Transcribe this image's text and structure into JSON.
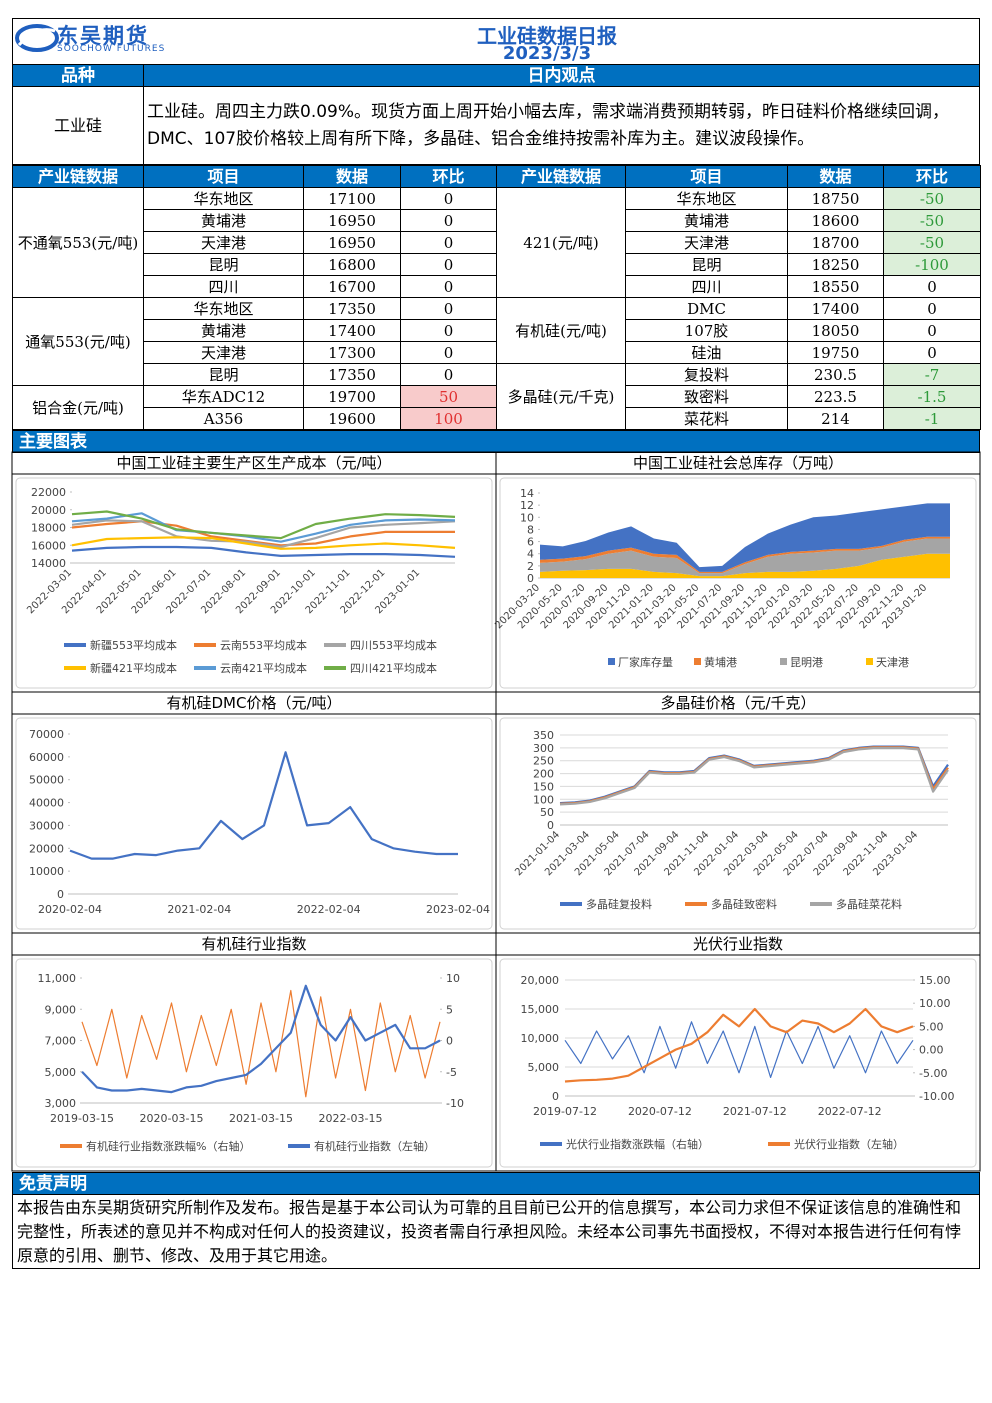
{
  "header": {
    "logo_cn": "东吴期货",
    "logo_en": "SOOCHOW FUTURES",
    "title": "工业硅数据日报",
    "date": "2023/3/3"
  },
  "view": {
    "col1": "品种",
    "col2": "日内观点",
    "product": "工业硅",
    "text": "工业硅。周四主力跌0.09%。现货方面上周开始小幅去库，需求端消费预期转弱，昨日硅料价格继续回调，DMC、107胶价格较上周有所下降，多晶硅、铝合金维持按需补库为主。建议波段操作。"
  },
  "table": {
    "headers": [
      "产业链数据",
      "项目",
      "数据",
      "环比",
      "产业链数据",
      "项目",
      "数据",
      "环比"
    ],
    "left_groups": [
      {
        "name": "不通氧553(元/吨)",
        "rows": [
          [
            "华东地区",
            17100,
            0
          ],
          [
            "黄埔港",
            16950,
            0
          ],
          [
            "天津港",
            16950,
            0
          ],
          [
            "昆明",
            16800,
            0
          ],
          [
            "四川",
            16700,
            0
          ]
        ]
      },
      {
        "name": "通氧553(元/吨)",
        "rows": [
          [
            "华东地区",
            17350,
            0
          ],
          [
            "黄埔港",
            17400,
            0
          ],
          [
            "天津港",
            17300,
            0
          ],
          [
            "昆明",
            17350,
            0
          ]
        ]
      },
      {
        "name": "铝合金(元/吨)",
        "rows": [
          [
            "华东ADC12",
            19700,
            50
          ],
          [
            "A356",
            19600,
            100
          ]
        ]
      }
    ],
    "right_groups": [
      {
        "name": "421(元/吨)",
        "rows": [
          [
            "华东地区",
            18750,
            -50
          ],
          [
            "黄埔港",
            18600,
            -50
          ],
          [
            "天津港",
            18700,
            -50
          ],
          [
            "昆明",
            18250,
            -100
          ],
          [
            "四川",
            18550,
            0
          ]
        ]
      },
      {
        "name": "有机硅(元/吨)",
        "rows": [
          [
            "DMC",
            17400,
            0
          ],
          [
            "107胶",
            18050,
            0
          ],
          [
            "硅油",
            19750,
            0
          ]
        ]
      },
      {
        "name": "多晶硅(元/千克)",
        "rows": [
          [
            "复投料",
            230.5,
            -7
          ],
          [
            "致密料",
            223.5,
            -1.5
          ],
          [
            "菜花料",
            214,
            -1
          ]
        ]
      }
    ]
  },
  "charts_heading": "主要图表",
  "charts": [
    {
      "type": "line",
      "title": "中国工业硅主要生产区生产成本（元/吨）",
      "categories": [
        "2022-03-01",
        "2022-04-01",
        "2022-05-01",
        "2022-06-01",
        "2022-07-01",
        "2022-08-01",
        "2022-09-01",
        "2022-10-01",
        "2022-11-01",
        "2022-12-01",
        "2023-01-01",
        null
      ],
      "ylim": [
        14000,
        22000
      ],
      "yticks": [
        14000,
        16000,
        18000,
        20000,
        22000
      ],
      "grid": false,
      "series": [
        {
          "name": "新疆553平均成本",
          "color": "#4472c4",
          "values": [
            15400,
            15700,
            15800,
            15800,
            15700,
            15200,
            14800,
            14900,
            15000,
            15000,
            14900,
            14700
          ]
        },
        {
          "name": "云南553平均成本",
          "color": "#ed7d31",
          "values": [
            18000,
            18400,
            18700,
            18200,
            17000,
            16500,
            16000,
            16200,
            17000,
            17500,
            17500,
            17500
          ]
        },
        {
          "name": "四川553平均成本",
          "color": "#a5a5a5",
          "values": [
            18300,
            18800,
            18700,
            17000,
            16500,
            16400,
            15800,
            16800,
            18000,
            18300,
            18500,
            18700
          ]
        },
        {
          "name": "新疆421平均成本",
          "color": "#ffc000",
          "values": [
            16000,
            16700,
            16800,
            16900,
            16800,
            16200,
            15600,
            15700,
            16000,
            16200,
            16000,
            15700
          ]
        },
        {
          "name": "云南421平均成本",
          "color": "#5b9bd5",
          "values": [
            18700,
            19000,
            19600,
            17700,
            17400,
            17000,
            16400,
            17300,
            18300,
            18800,
            18900,
            18800
          ]
        },
        {
          "name": "四川421平均成本",
          "color": "#70ad47",
          "values": [
            19500,
            19800,
            19000,
            17800,
            17400,
            17100,
            16800,
            18400,
            19000,
            19500,
            19400,
            19200
          ]
        }
      ]
    },
    {
      "type": "area",
      "title": "中国工业硅社会总库存（万吨）",
      "categories": [
        "2020-03-20",
        "2020-05-20",
        "2020-07-20",
        "2020-09-20",
        "2020-11-20",
        "2021-01-20",
        "2021-03-20",
        "2021-05-20",
        "2021-07-20",
        "2021-09-20",
        "2021-11-20",
        "2022-01-20",
        "2022-03-20",
        "2022-05-20",
        "2022-07-20",
        "2022-09-20",
        "2022-11-20",
        "2023-01-20",
        null
      ],
      "ylim": [
        0,
        14
      ],
      "yticks": [
        0,
        2,
        4,
        6,
        8,
        10,
        12,
        14
      ],
      "grid": false,
      "series": [
        {
          "name": "厂家库存量",
          "color": "#4472c4",
          "values": [
            2.5,
            2,
            2.5,
            3,
            3.5,
            2.5,
            2,
            0.8,
            1,
            2.5,
            3.5,
            4.5,
            5.5,
            5.5,
            6,
            6,
            5.5,
            5.5,
            5.5
          ]
        },
        {
          "name": "黄埔港",
          "color": "#ed7d31",
          "values": [
            0.5,
            0.5,
            0.5,
            0.5,
            0.5,
            0.5,
            0.5,
            0.2,
            0.2,
            0.3,
            0.3,
            0.3,
            0.3,
            0.3,
            0.3,
            0.3,
            0.3,
            0.3,
            0.3
          ]
        },
        {
          "name": "昆明港",
          "color": "#a5a5a5",
          "values": [
            1.5,
            1.5,
            1.8,
            2.5,
            3,
            2.5,
            2.5,
            0.5,
            0.5,
            1.5,
            2.5,
            3,
            3,
            3,
            2.5,
            2,
            2.5,
            2.5,
            2.5
          ]
        },
        {
          "name": "天津港",
          "color": "#ffc000",
          "values": [
            1,
            1.2,
            1.3,
            1.5,
            1.5,
            1,
            0.8,
            0.3,
            0.3,
            0.8,
            1,
            1,
            1.2,
            1.5,
            2,
            3,
            3.5,
            4,
            4
          ]
        }
      ]
    },
    {
      "type": "line",
      "title": "有机硅DMC价格（元/吨）",
      "categories": [
        "2020-02-04",
        null,
        null,
        null,
        null,
        null,
        "2021-02-04",
        null,
        null,
        null,
        null,
        null,
        "2022-02-04",
        null,
        null,
        null,
        null,
        null,
        "2023-02-04"
      ],
      "ylim": [
        0,
        70000
      ],
      "yticks": [
        0,
        10000,
        20000,
        30000,
        40000,
        50000,
        60000,
        70000
      ],
      "grid": false,
      "series": [
        {
          "color": "#4472c4",
          "values": [
            19000,
            15500,
            15500,
            17500,
            17000,
            19000,
            20000,
            32000,
            24000,
            30000,
            62000,
            30000,
            31000,
            38000,
            24000,
            20000,
            18500,
            17500,
            17500
          ]
        }
      ]
    },
    {
      "type": "line",
      "title": "多晶硅价格（元/千克）",
      "categories": [
        "2021-01-04",
        null,
        "2021-03-04",
        null,
        "2021-05-04",
        null,
        "2021-07-04",
        null,
        "2021-09-04",
        null,
        "2021-11-04",
        null,
        "2022-01-04",
        null,
        "2022-03-04",
        null,
        "2022-05-04",
        null,
        "2022-07-04",
        null,
        "2022-09-04",
        null,
        "2022-11-04",
        null,
        "2023-01-04",
        null,
        null
      ],
      "ylim": [
        0,
        350
      ],
      "yticks": [
        0,
        50,
        100,
        150,
        200,
        250,
        300,
        350
      ],
      "grid": true,
      "series": [
        {
          "name": "多晶硅复投料",
          "color": "#4472c4",
          "values": [
            85,
            88,
            95,
            110,
            130,
            150,
            210,
            205,
            205,
            210,
            260,
            270,
            255,
            230,
            235,
            240,
            245,
            250,
            260,
            290,
            300,
            305,
            305,
            305,
            300,
            150,
            235
          ]
        },
        {
          "name": "多晶硅致密料",
          "color": "#ed7d31",
          "values": [
            82,
            85,
            92,
            107,
            127,
            147,
            207,
            202,
            202,
            207,
            257,
            267,
            252,
            227,
            232,
            237,
            242,
            247,
            257,
            287,
            297,
            302,
            302,
            302,
            297,
            140,
            223
          ]
        },
        {
          "name": "多晶硅菜花料",
          "color": "#a5a5a5",
          "values": [
            80,
            83,
            90,
            104,
            124,
            144,
            204,
            199,
            199,
            204,
            254,
            264,
            249,
            224,
            229,
            234,
            239,
            244,
            254,
            284,
            294,
            299,
            299,
            299,
            294,
            130,
            214
          ]
        }
      ]
    },
    {
      "type": "line",
      "title": "有机硅行业指数",
      "categories": [
        "2019-03-15",
        null,
        null,
        null,
        null,
        null,
        "2020-03-15",
        null,
        null,
        null,
        null,
        null,
        "2021-03-15",
        null,
        null,
        null,
        null,
        null,
        "2022-03-15",
        null,
        null,
        null,
        null,
        null,
        null
      ],
      "ylim": [
        3000,
        11000
      ],
      "yticks": [
        {
          "value": 3000,
          "label": "3,000"
        },
        {
          "value": 5000,
          "label": "5,000"
        },
        {
          "value": 7000,
          "label": "7,000"
        },
        {
          "value": 9000,
          "label": "9,000"
        },
        {
          "value": 11000,
          "label": "11,000"
        }
      ],
      "y2lim": [
        -10,
        10
      ],
      "y2ticks": [
        -10,
        -5,
        0,
        5,
        10
      ],
      "grid": false,
      "series": [
        {
          "name": "有机硅行业指数涨跌幅%（右轴）",
          "color": "#ed7d31",
          "axis": "y2",
          "values": [
            3,
            -4,
            5,
            -6,
            4,
            -3,
            6,
            -5,
            4,
            -4,
            5,
            -7,
            6,
            -5,
            8,
            -9,
            7,
            -6,
            5,
            -8,
            6,
            -5,
            4,
            -6,
            3
          ]
        },
        {
          "name": "有机硅行业指数（左轴）",
          "color": "#4472c4",
          "values": [
            5000,
            4000,
            3800,
            3800,
            3900,
            3800,
            3700,
            4000,
            4100,
            4400,
            4600,
            4800,
            5500,
            6500,
            7500,
            10500,
            8000,
            7000,
            8500,
            7000,
            7500,
            8000,
            6500,
            6500,
            7000
          ]
        }
      ]
    },
    {
      "type": "line",
      "title": "光伏行业指数",
      "categories": [
        "2019-07-12",
        null,
        null,
        null,
        null,
        null,
        "2020-07-12",
        null,
        null,
        null,
        null,
        null,
        "2021-07-12",
        null,
        null,
        null,
        null,
        null,
        "2022-07-12",
        null,
        null,
        null,
        null
      ],
      "ylim": [
        0,
        20000
      ],
      "yticks": [
        0,
        {
          "value": 5000,
          "label": "5,000"
        },
        {
          "value": 10000,
          "label": "10,000"
        },
        {
          "value": 15000,
          "label": "15,000"
        },
        {
          "value": 20000,
          "label": "20,000"
        }
      ],
      "y2lim": [
        -10,
        15
      ],
      "y2ticks": [
        {
          "value": -10,
          "label": "-10.00"
        },
        {
          "value": -5,
          "label": "-5.00"
        },
        {
          "value": 0,
          "label": "0.00"
        },
        {
          "value": 5,
          "label": "5.00"
        },
        {
          "value": 10,
          "label": "10.00"
        },
        {
          "value": 15,
          "label": "15.00"
        }
      ],
      "grid": true,
      "series": [
        {
          "name": "光伏行业指数涨跌幅（右轴）",
          "color": "#4472c4",
          "axis": "y2",
          "values": [
            2,
            -3,
            4,
            -2,
            3,
            -5,
            5,
            -4,
            6,
            -3,
            4,
            -5,
            5,
            -6,
            4,
            -3,
            5,
            -4,
            3,
            -5,
            4,
            -3,
            2
          ]
        },
        {
          "name": "光伏行业指数（左轴）",
          "color": "#ed7d31",
          "values": [
            2500,
            2700,
            2800,
            3000,
            3500,
            5000,
            6500,
            8000,
            9000,
            11000,
            14000,
            12000,
            15000,
            12000,
            11000,
            13000,
            12500,
            11000,
            12500,
            15000,
            12000,
            11000,
            12000
          ]
        }
      ]
    }
  ],
  "disclaimer": {
    "heading": "免责声明",
    "text": "本报告由东吴期货研究所制作及发布。报告是基于本公司认为可靠的且目前已公开的信息撰写，本公司力求但不保证该信息的准确性和完整性，所表述的意见并不构成对任何人的投资建议，投资者需自行承担风险。未经本公司事先书面授权，不得对本报告进行任何有悖原意的引用、删节、修改、及用于其它用途。"
  }
}
